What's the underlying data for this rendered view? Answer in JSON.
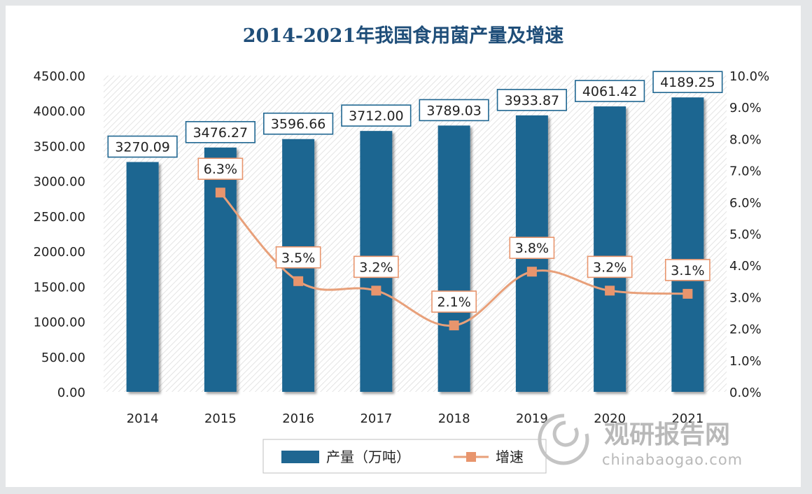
{
  "chart_data": {
    "type": "bar+line",
    "title": "2014-2021年我国食用菌产量及增速",
    "categories": [
      "2014",
      "2015",
      "2016",
      "2017",
      "2018",
      "2019",
      "2020",
      "2021"
    ],
    "series": [
      {
        "name": "产量（万吨）",
        "type": "bar",
        "axis": "left",
        "values": [
          3270.09,
          3476.27,
          3596.66,
          3712.0,
          3789.03,
          3933.87,
          4061.42,
          4189.25
        ],
        "labels": [
          "3270.09",
          "3476.27",
          "3596.66",
          "3712.00",
          "3789.03",
          "3933.87",
          "4061.42",
          "4189.25"
        ]
      },
      {
        "name": "增速",
        "type": "line",
        "axis": "right",
        "values": [
          null,
          6.3,
          3.5,
          3.2,
          2.1,
          3.8,
          3.2,
          3.1
        ],
        "labels": [
          "",
          "6.3%",
          "3.5%",
          "3.2%",
          "2.1%",
          "3.8%",
          "3.2%",
          "3.1%"
        ]
      }
    ],
    "y_left": {
      "min": 0,
      "max": 4500,
      "ticks": [
        "0.00",
        "500.00",
        "1000.00",
        "1500.00",
        "2000.00",
        "2500.00",
        "3000.00",
        "3500.00",
        "4000.00",
        "4500.00"
      ]
    },
    "y_right": {
      "min": 0,
      "max": 10,
      "ticks": [
        "0.0%",
        "1.0%",
        "2.0%",
        "3.0%",
        "4.0%",
        "5.0%",
        "6.0%",
        "7.0%",
        "8.0%",
        "9.0%",
        "10.0%"
      ]
    },
    "legend_position": "bottom",
    "colors": {
      "bar": "#1f6691",
      "line": "#e8a07a",
      "marker": "#e8956d",
      "title": "#1f4e79",
      "label_border_bar": "#1f6691",
      "label_border_line": "#e8956d"
    }
  },
  "legend": {
    "bar_label": "产量（万吨）",
    "line_label": "增速"
  },
  "watermark": {
    "cn": "观研报告网",
    "en": "chinabaogao.com"
  }
}
